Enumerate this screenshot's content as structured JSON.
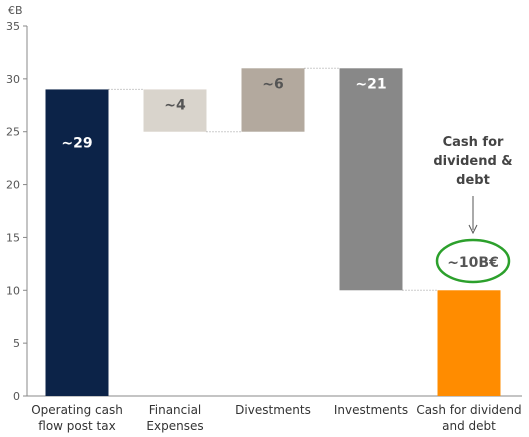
{
  "chart_data": {
    "type": "waterfall",
    "unit_label": "€B",
    "ylim": [
      0,
      35
    ],
    "yticks": [
      0,
      5,
      10,
      15,
      20,
      25,
      30,
      35
    ],
    "grid": false,
    "categories": [
      [
        "Operating cash",
        "flow post tax"
      ],
      [
        "Financial",
        "Expenses"
      ],
      [
        "Divestments"
      ],
      [
        "Investments"
      ],
      [
        "Cash for dividend",
        "and debt"
      ]
    ],
    "bars": [
      {
        "start": 0,
        "end": 29,
        "label": "~29",
        "color": "#0c2348",
        "label_color": "#ffffff"
      },
      {
        "start": 29,
        "end": 25,
        "label": "~4",
        "color": "#d9d4cc",
        "label_color": "#555555"
      },
      {
        "start": 25,
        "end": 31,
        "label": "~6",
        "color": "#b3a99e",
        "label_color": "#555555"
      },
      {
        "start": 31,
        "end": 10,
        "label": "~21",
        "color": "#888888",
        "label_color": "#ffffff"
      },
      {
        "start": 0,
        "end": 10,
        "label": "",
        "color": "#ff8c00",
        "label_color": "#ffffff"
      }
    ],
    "annotation": {
      "lines": [
        "Cash for",
        "dividend &",
        "debt"
      ],
      "value_label": "~10B€",
      "circle_color": "#2ca02c"
    }
  }
}
